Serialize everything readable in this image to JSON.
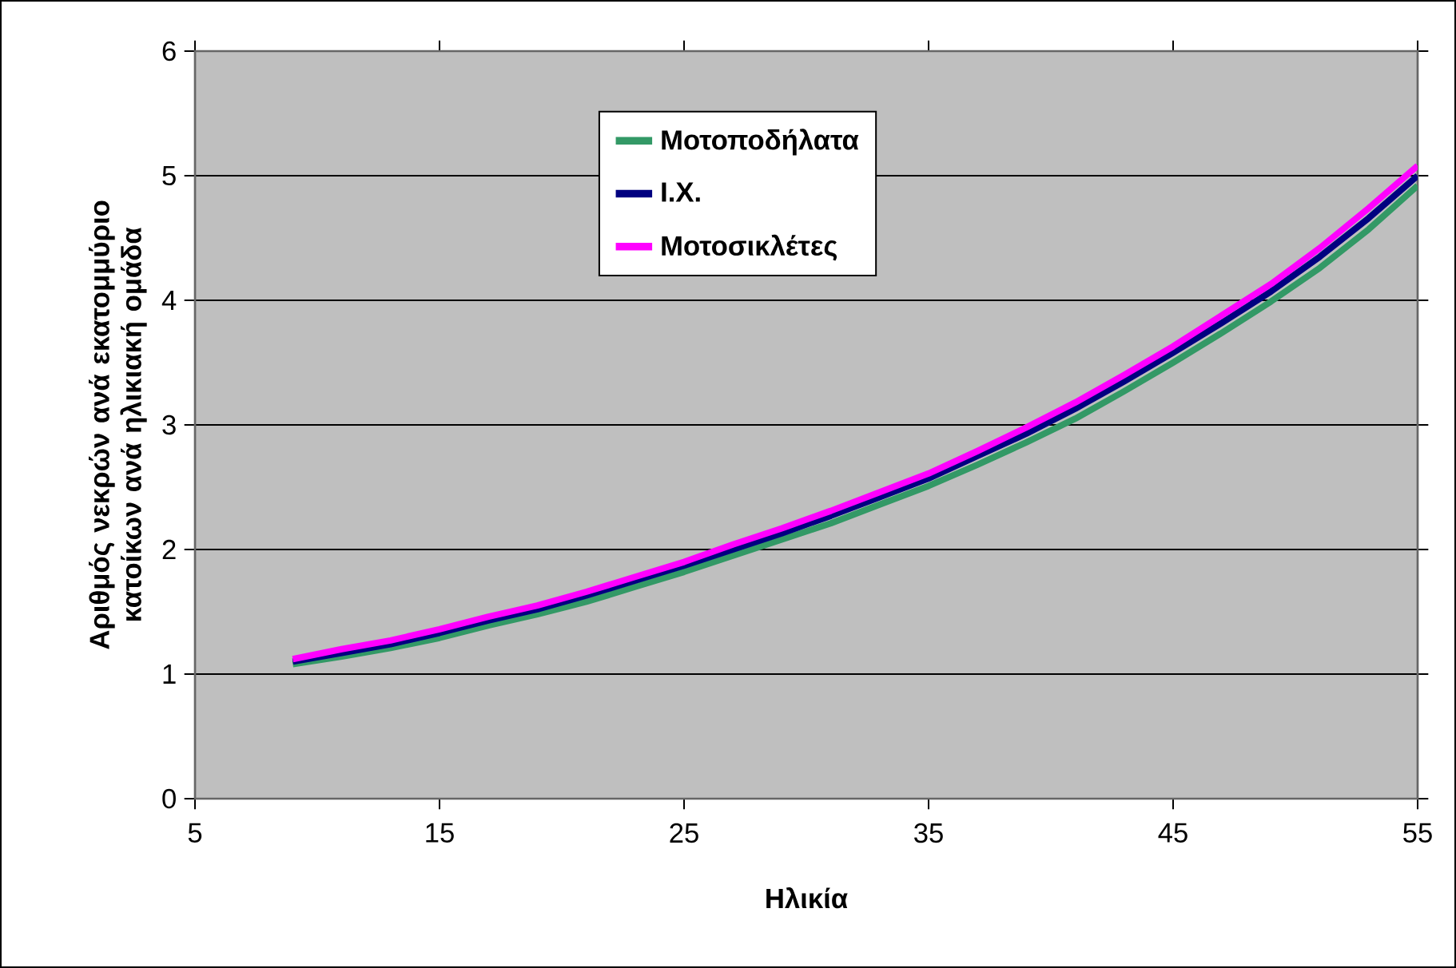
{
  "chart_data": {
    "type": "line",
    "xlabel": "Ηλικία",
    "ylabel": "Αριθμός νεκρών ανά εκατομμύριο κατοίκων ανά ηλικιακή ομάδα",
    "x": [
      9,
      11,
      13,
      15,
      17,
      19,
      21,
      23,
      25,
      27,
      29,
      31,
      33,
      35,
      37,
      39,
      41,
      43,
      45,
      47,
      49,
      51,
      53,
      55
    ],
    "series": [
      {
        "name": "Ι.Χ.",
        "color": "#000080",
        "values": [
          1.1,
          1.17,
          1.24,
          1.33,
          1.43,
          1.52,
          1.63,
          1.75,
          1.87,
          2.0,
          2.13,
          2.27,
          2.42,
          2.57,
          2.75,
          2.93,
          3.13,
          3.35,
          3.58,
          3.82,
          4.07,
          4.35,
          4.66,
          5.0
        ]
      },
      {
        "name": "Μοτοσικλέτες",
        "color": "#ff00ff",
        "values": [
          1.12,
          1.2,
          1.27,
          1.36,
          1.46,
          1.55,
          1.66,
          1.78,
          1.9,
          2.04,
          2.17,
          2.31,
          2.46,
          2.61,
          2.79,
          2.98,
          3.18,
          3.4,
          3.63,
          3.88,
          4.13,
          4.42,
          4.74,
          5.08
        ]
      },
      {
        "name": "Μοτοποδήλατα",
        "color": "#339966",
        "values": [
          1.08,
          1.14,
          1.21,
          1.29,
          1.39,
          1.48,
          1.58,
          1.7,
          1.82,
          1.95,
          2.08,
          2.21,
          2.36,
          2.51,
          2.68,
          2.86,
          3.05,
          3.27,
          3.5,
          3.74,
          3.99,
          4.26,
          4.57,
          4.92
        ]
      }
    ],
    "xlim": [
      5,
      55
    ],
    "ylim": [
      0,
      6
    ],
    "xticks": [
      5,
      15,
      25,
      35,
      45,
      55
    ],
    "yticks": [
      0,
      1,
      2,
      3,
      4,
      5,
      6
    ],
    "grid": "y",
    "legend": "top",
    "marker": "none",
    "line_style": "solid"
  }
}
